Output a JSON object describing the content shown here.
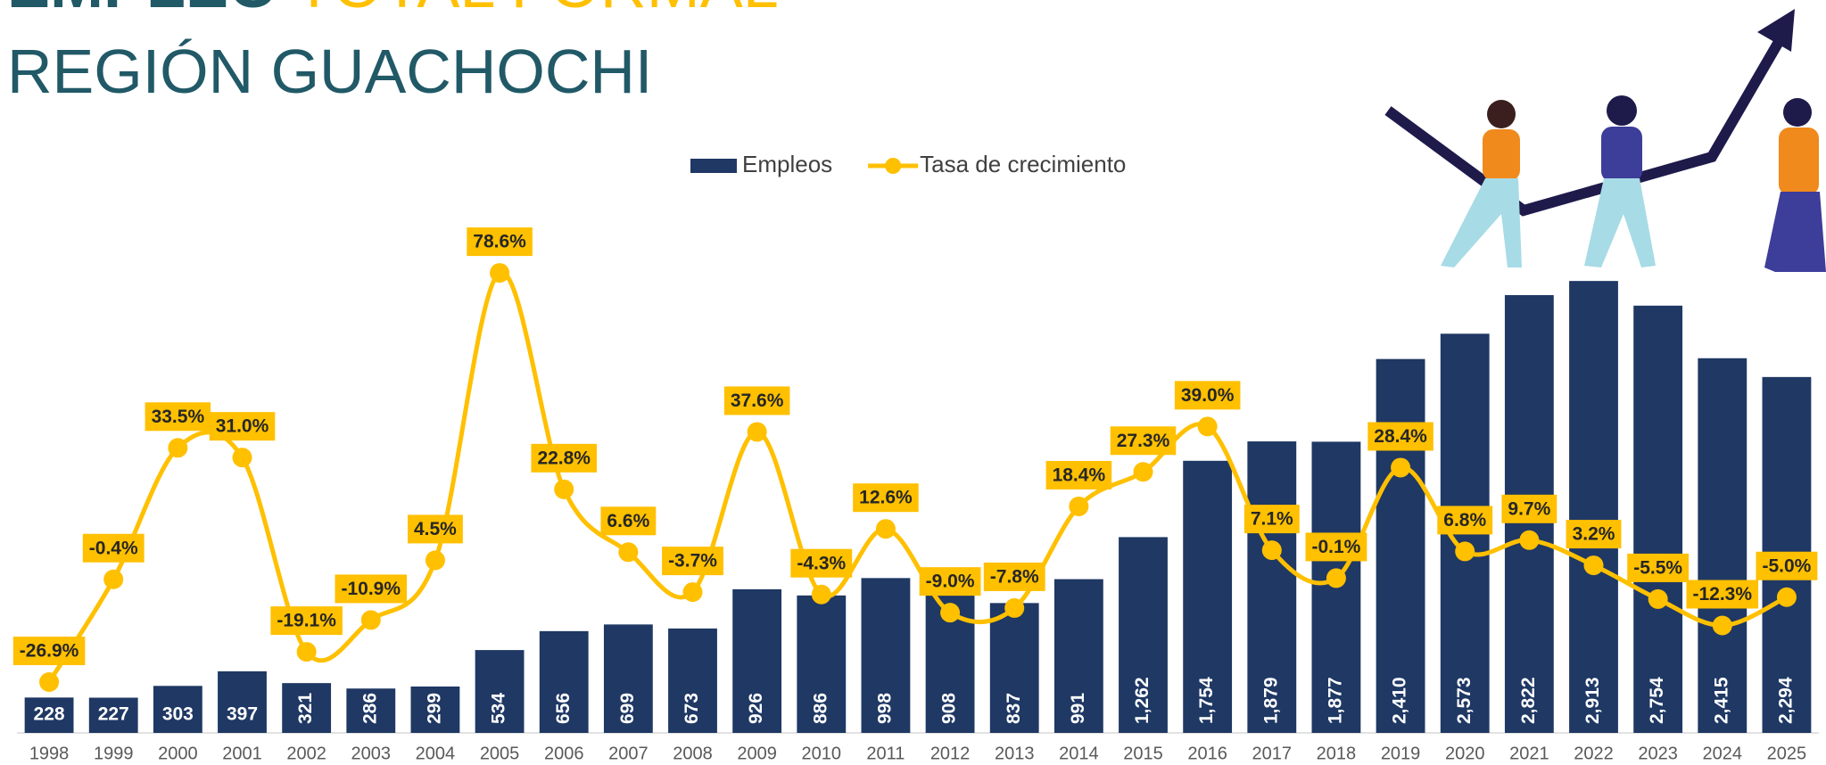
{
  "chart_data": {
    "type": "bar",
    "title": "EMPLEO",
    "title_highlight": "TOTAL FORMAL",
    "subtitle": "REGIÓN GUACHOCHI",
    "categories": [
      "1998",
      "1999",
      "2000",
      "2001",
      "2002",
      "2003",
      "2004",
      "2005",
      "2006",
      "2007",
      "2008",
      "2009",
      "2010",
      "2011",
      "2012",
      "2013",
      "2014",
      "2015",
      "2016",
      "2017",
      "2018",
      "2019",
      "2020",
      "2021",
      "2022",
      "2023",
      "2024",
      "2025"
    ],
    "ylim": [
      0,
      3000
    ],
    "y2lim": [
      -40,
      80
    ],
    "legend": "top",
    "series": [
      {
        "name": "Empleos",
        "type": "bar",
        "color": "#1f3864",
        "values": [
          228,
          227,
          303,
          397,
          321,
          286,
          299,
          534,
          656,
          699,
          673,
          926,
          886,
          998,
          908,
          837,
          991,
          1262,
          1754,
          1879,
          1877,
          2410,
          2573,
          2822,
          2913,
          2754,
          2415,
          2294
        ],
        "value_labels": [
          "228",
          "227",
          "303",
          "397",
          "321",
          "286",
          "299",
          "534",
          "656",
          "699",
          "673",
          "926",
          "886",
          "998",
          "908",
          "837",
          "991",
          "1,262",
          "1,754",
          "1,879",
          "1,877",
          "2,410",
          "2,573",
          "2,822",
          "2,913",
          "2,754",
          "2,415",
          "2,294"
        ]
      },
      {
        "name": "Tasa de crecimiento",
        "type": "line",
        "axis": "y2",
        "color": "#ffc000",
        "values": [
          -26.9,
          -0.4,
          33.5,
          31.0,
          -19.1,
          -10.9,
          4.5,
          78.6,
          22.8,
          6.6,
          -3.7,
          37.6,
          -4.3,
          12.6,
          -9.0,
          -7.8,
          18.4,
          27.3,
          39.0,
          7.1,
          -0.1,
          28.4,
          6.8,
          9.7,
          3.2,
          -5.5,
          -12.3,
          -5.0
        ],
        "value_labels": [
          "-26.9%",
          "-0.4%",
          "33.5%",
          "31.0%",
          "-19.1%",
          "-10.9%",
          "4.5%",
          "78.6%",
          "22.8%",
          "6.6%",
          "-3.7%",
          "37.6%",
          "-4.3%",
          "12.6%",
          "-9.0%",
          "-7.8%",
          "18.4%",
          "27.3%",
          "39.0%",
          "7.1%",
          "-0.1%",
          "28.4%",
          "6.8%",
          "9.7%",
          "3.2%",
          "-5.5%",
          "-12.3%",
          "-5.0%"
        ]
      }
    ]
  }
}
